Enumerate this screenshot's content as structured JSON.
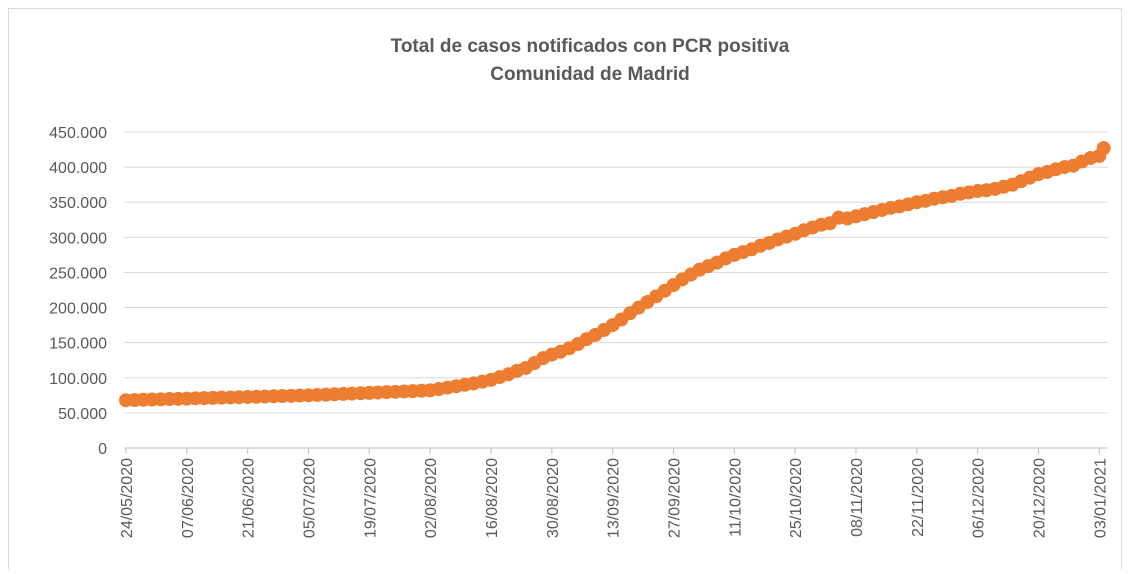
{
  "chart_data": {
    "type": "scatter",
    "title": "Total de casos notificados con PCR positiva",
    "subtitle": "Comunidad de Madrid",
    "color": "#ed7d31",
    "grid": true,
    "x": [
      "24/05/2020",
      "26/05/2020",
      "28/05/2020",
      "30/05/2020",
      "01/06/2020",
      "03/06/2020",
      "05/06/2020",
      "07/06/2020",
      "09/06/2020",
      "11/06/2020",
      "13/06/2020",
      "15/06/2020",
      "17/06/2020",
      "19/06/2020",
      "21/06/2020",
      "23/06/2020",
      "25/06/2020",
      "27/06/2020",
      "29/06/2020",
      "01/07/2020",
      "03/07/2020",
      "05/07/2020",
      "07/07/2020",
      "09/07/2020",
      "11/07/2020",
      "13/07/2020",
      "15/07/2020",
      "17/07/2020",
      "19/07/2020",
      "21/07/2020",
      "23/07/2020",
      "25/07/2020",
      "27/07/2020",
      "29/07/2020",
      "31/07/2020",
      "02/08/2020",
      "04/08/2020",
      "06/08/2020",
      "08/08/2020",
      "10/08/2020",
      "12/08/2020",
      "14/08/2020",
      "16/08/2020",
      "18/08/2020",
      "20/08/2020",
      "22/08/2020",
      "24/08/2020",
      "26/08/2020",
      "28/08/2020",
      "30/08/2020",
      "01/09/2020",
      "03/09/2020",
      "05/09/2020",
      "07/09/2020",
      "09/09/2020",
      "11/09/2020",
      "13/09/2020",
      "15/09/2020",
      "17/09/2020",
      "19/09/2020",
      "21/09/2020",
      "23/09/2020",
      "25/09/2020",
      "27/09/2020",
      "29/09/2020",
      "01/10/2020",
      "03/10/2020",
      "05/10/2020",
      "07/10/2020",
      "09/10/2020",
      "11/10/2020",
      "13/10/2020",
      "15/10/2020",
      "17/10/2020",
      "19/10/2020",
      "21/10/2020",
      "23/10/2020",
      "25/10/2020",
      "27/10/2020",
      "29/10/2020",
      "31/10/2020",
      "02/11/2020",
      "04/11/2020",
      "06/11/2020",
      "08/11/2020",
      "10/11/2020",
      "12/11/2020",
      "14/11/2020",
      "16/11/2020",
      "18/11/2020",
      "20/11/2020",
      "22/11/2020",
      "24/11/2020",
      "26/11/2020",
      "28/11/2020",
      "30/11/2020",
      "02/12/2020",
      "04/12/2020",
      "06/12/2020",
      "08/12/2020",
      "10/12/2020",
      "12/12/2020",
      "14/12/2020",
      "16/12/2020",
      "18/12/2020",
      "20/12/2020",
      "22/12/2020",
      "24/12/2020",
      "26/12/2020",
      "28/12/2020",
      "30/12/2020",
      "01/01/2021",
      "03/01/2021",
      "04/01/2021"
    ],
    "values": [
      68000,
      68300,
      68700,
      69000,
      69300,
      69700,
      70000,
      70300,
      70700,
      71000,
      71300,
      71700,
      72000,
      72300,
      72700,
      73000,
      73300,
      73700,
      74000,
      74300,
      74700,
      75000,
      75500,
      76000,
      76500,
      77000,
      77500,
      78000,
      78500,
      79000,
      79500,
      80000,
      80500,
      81000,
      81500,
      82000,
      84000,
      86000,
      88000,
      90000,
      92000,
      94500,
      97000,
      101000,
      105000,
      110000,
      114000,
      121000,
      128000,
      133000,
      137000,
      142000,
      148000,
      155000,
      161000,
      168000,
      175000,
      183000,
      192000,
      200000,
      208000,
      216000,
      224000,
      232000,
      240000,
      247000,
      254000,
      259000,
      264000,
      270000,
      275000,
      279000,
      283000,
      288000,
      292000,
      297000,
      301000,
      305000,
      310000,
      314000,
      318000,
      320000,
      328000,
      327000,
      330000,
      333000,
      336000,
      339000,
      342000,
      344000,
      347000,
      350000,
      352000,
      355000,
      357000,
      359000,
      362000,
      364000,
      366000,
      367000,
      369000,
      372000,
      375000,
      380000,
      385000,
      390000,
      393000,
      397000,
      400000,
      402000,
      408000,
      413000,
      416000,
      427000
    ],
    "xlim": [
      "24/05/2020",
      "05/01/2021"
    ],
    "xticks": [
      "24/05/2020",
      "07/06/2020",
      "21/06/2020",
      "05/07/2020",
      "19/07/2020",
      "02/08/2020",
      "16/08/2020",
      "30/08/2020",
      "13/09/2020",
      "27/09/2020",
      "11/10/2020",
      "25/10/2020",
      "08/11/2020",
      "22/11/2020",
      "06/12/2020",
      "20/12/2020",
      "03/01/2021"
    ],
    "ylim": [
      0,
      450000
    ],
    "yticks": [
      0,
      {
        "value": 50000,
        "label": "50.000"
      },
      {
        "value": 100000,
        "label": "100.000"
      },
      {
        "value": 150000,
        "label": "150.000"
      },
      {
        "value": 200000,
        "label": "200.000"
      },
      {
        "value": 250000,
        "label": "250.000"
      },
      {
        "value": 300000,
        "label": "300.000"
      },
      {
        "value": 350000,
        "label": "350.000"
      },
      {
        "value": 400000,
        "label": "400.000"
      },
      {
        "value": 450000,
        "label": "450.000"
      }
    ]
  }
}
